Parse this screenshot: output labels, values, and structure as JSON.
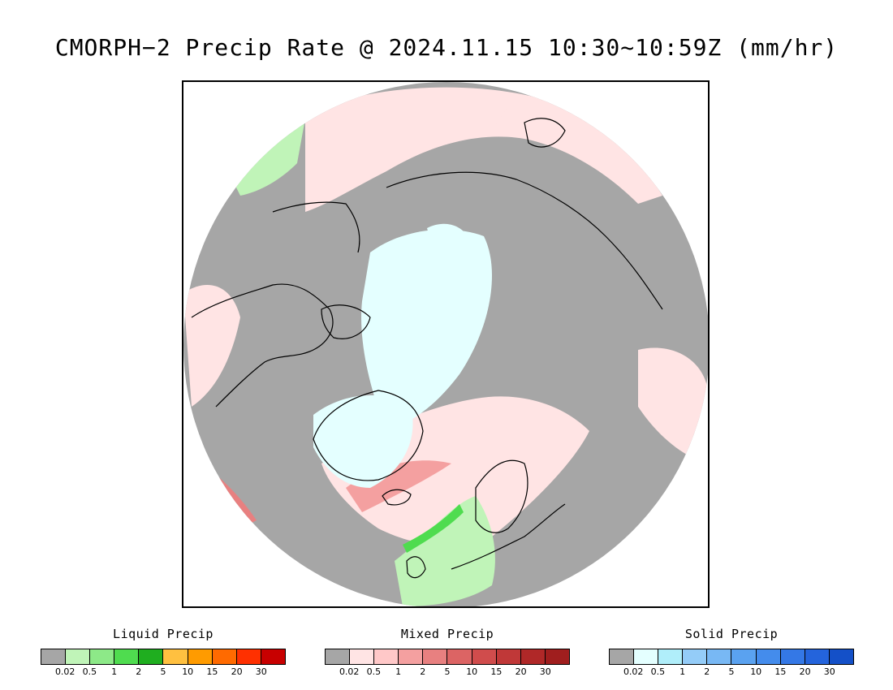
{
  "title": "CMORPH−2 Precip Rate @ 2024.11.15 10:30~10:59Z (mm/hr)",
  "map": {
    "projection": "north-polar-stereographic",
    "colors": {
      "no_precip": "#a6a6a6",
      "frame": "#000000",
      "coastline": "#000000"
    }
  },
  "legends": [
    {
      "title": "Liquid Precip",
      "ticks": [
        "0.02",
        "0.5",
        "1",
        "2",
        "5",
        "10",
        "15",
        "20",
        "30"
      ],
      "colors": [
        "#a6a6a6",
        "#c0f4b8",
        "#8de988",
        "#4fdc4f",
        "#1fae1f",
        "#ffc040",
        "#ff9b00",
        "#ff6a00",
        "#ff3000",
        "#c80000"
      ]
    },
    {
      "title": "Mixed Precip",
      "ticks": [
        "0.02",
        "0.5",
        "1",
        "2",
        "5",
        "10",
        "15",
        "20",
        "30"
      ],
      "colors": [
        "#a6a6a6",
        "#ffe4e4",
        "#ffc8c8",
        "#f4a0a0",
        "#e88080",
        "#dc6464",
        "#d04c4c",
        "#c03838",
        "#b02828",
        "#a01e1e"
      ]
    },
    {
      "title": "Solid Precip",
      "ticks": [
        "0.02",
        "0.5",
        "1",
        "2",
        "5",
        "10",
        "15",
        "20",
        "30"
      ],
      "colors": [
        "#a6a6a6",
        "#e4ffff",
        "#b0eefa",
        "#94ccf8",
        "#78b8f4",
        "#5aa2f0",
        "#448cec",
        "#3478e6",
        "#2464dc",
        "#1450c8"
      ]
    }
  ]
}
